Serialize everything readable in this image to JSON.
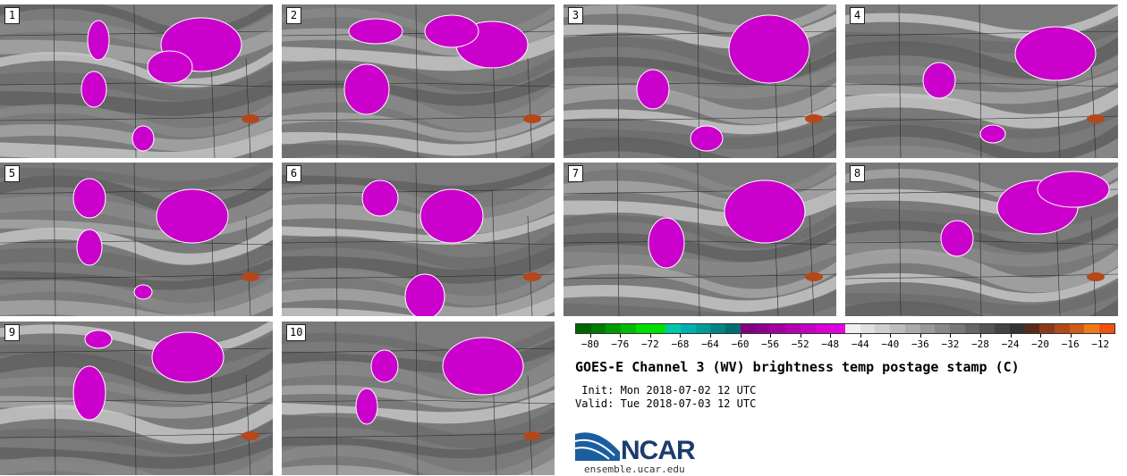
{
  "panels": [
    {
      "label": "1"
    },
    {
      "label": "2"
    },
    {
      "label": "3"
    },
    {
      "label": "4"
    },
    {
      "label": "5"
    },
    {
      "label": "6"
    },
    {
      "label": "7"
    },
    {
      "label": "8"
    },
    {
      "label": "9"
    },
    {
      "label": "10"
    }
  ],
  "colorbar": {
    "tick_labels": [
      "−80",
      "−76",
      "−72",
      "−68",
      "−64",
      "−60",
      "−56",
      "−52",
      "−48",
      "−44",
      "−40",
      "−36",
      "−32",
      "−28",
      "−24",
      "−20",
      "−16",
      "−12"
    ],
    "range": [
      -82,
      -10
    ],
    "colors": [
      "#006400",
      "#007a00",
      "#009a00",
      "#00bb00",
      "#00dd00",
      "#00e000",
      "#00c8a8",
      "#00b0b0",
      "#009a9a",
      "#008484",
      "#006e6e",
      "#800080",
      "#8f008f",
      "#a000a0",
      "#b300b3",
      "#c400c4",
      "#d600d6",
      "#e000e0",
      "#f0f0f0",
      "#e0e0e0",
      "#cfcfcf",
      "#bdbdbd",
      "#ababab",
      "#9a9a9a",
      "#898989",
      "#777777",
      "#666666",
      "#555555",
      "#444444",
      "#333333",
      "#5a2a1a",
      "#8a3a1a",
      "#b04a1a",
      "#d05a1a",
      "#f07a1a",
      "#f05010"
    ]
  },
  "title": "GOES-E Channel 3 (WV) brightness temp postage stamp (C)",
  "init_text": " Init: Mon 2018-07-02 12 UTC",
  "valid_text": "Valid: Tue 2018-07-03 12 UTC",
  "logo": {
    "name": "NCAR",
    "url": "ensemble.ucar.edu",
    "colors": {
      "swoosh": "#1b5ea0",
      "text": "#1b3c6e"
    }
  }
}
